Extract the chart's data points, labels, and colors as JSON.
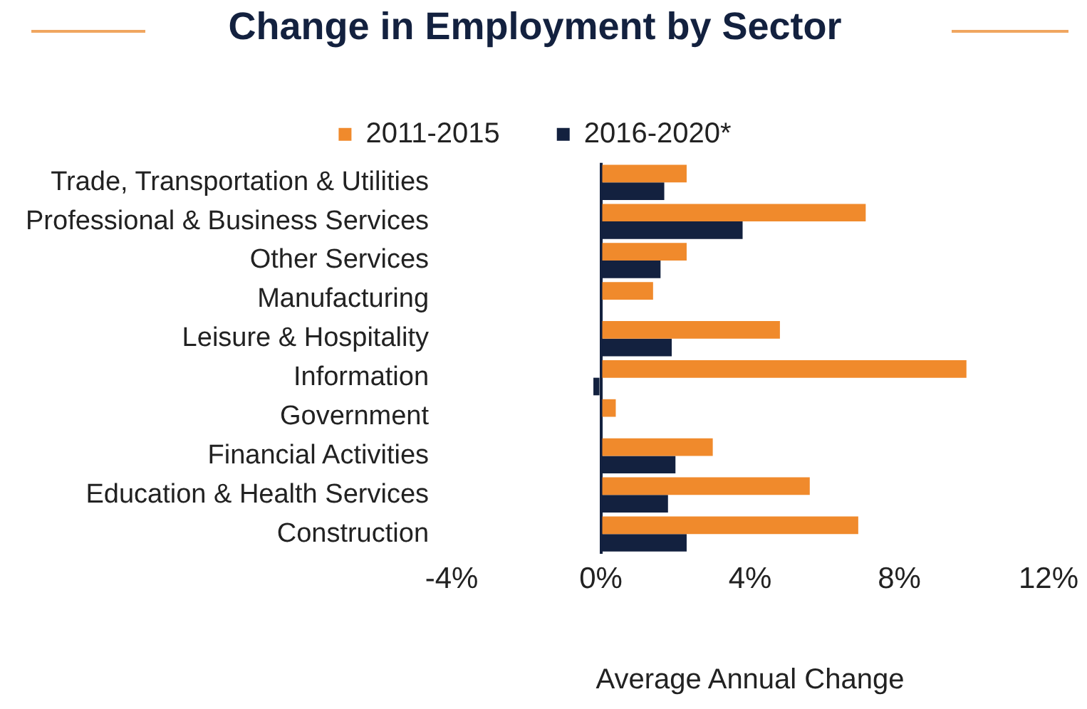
{
  "chart_data": {
    "type": "bar",
    "orientation": "horizontal",
    "title": "Change in Employment by Sector",
    "xlabel": "Average Annual Change",
    "categories": [
      "Trade, Transportation & Utilities",
      "Professional & Business Services",
      "Other Services",
      "Manufacturing",
      "Leisure & Hospitality",
      "Information",
      "Government",
      "Financial Activities",
      "Education & Health Services",
      "Construction"
    ],
    "series": [
      {
        "name": "2011-2015",
        "color": "#f08a2c",
        "values": [
          2.3,
          7.1,
          2.3,
          1.4,
          4.8,
          9.8,
          0.4,
          3.0,
          5.6,
          6.9
        ]
      },
      {
        "name": "2016-2020*",
        "color": "#13213f",
        "values": [
          1.7,
          3.8,
          1.6,
          0.0,
          1.9,
          -0.2,
          0.0,
          2.0,
          1.8,
          2.3
        ]
      }
    ],
    "xlim": [
      -4,
      12
    ],
    "xticks": [
      {
        "value": -4,
        "label": "-4%"
      },
      {
        "value": 0,
        "label": "0%"
      },
      {
        "value": 4,
        "label": "4%"
      },
      {
        "value": 8,
        "label": "8%"
      },
      {
        "value": 12,
        "label": "12%"
      }
    ],
    "legend": "top",
    "grid": false
  }
}
